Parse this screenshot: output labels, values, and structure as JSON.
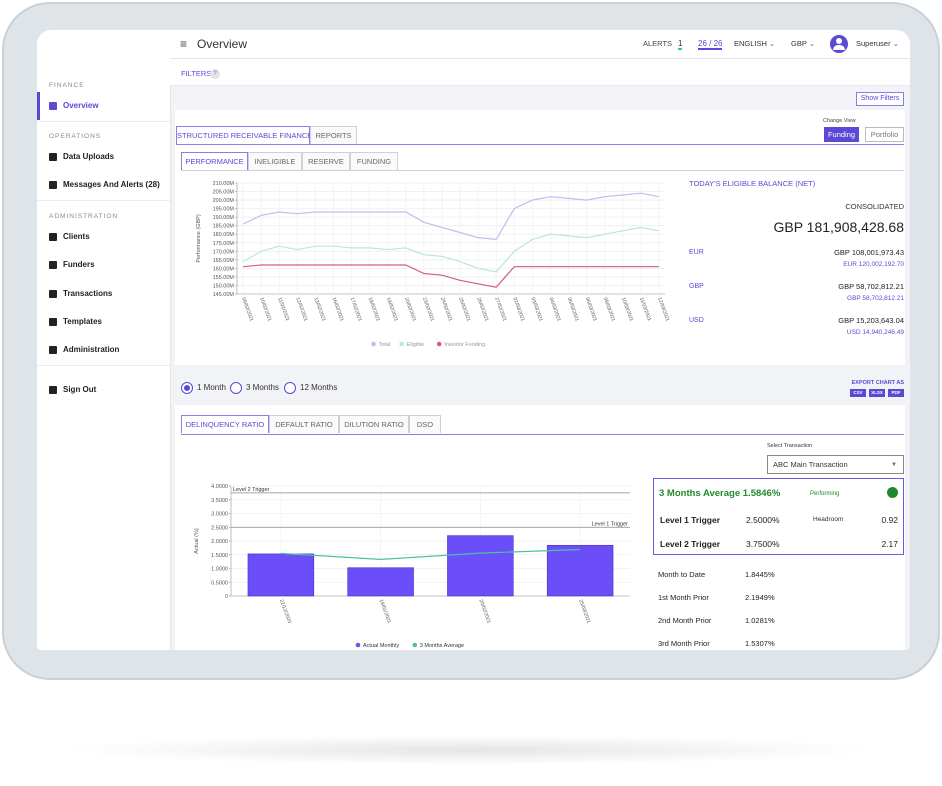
{
  "sidebar": {
    "sections": [
      {
        "heading": "FINANCE",
        "items": [
          "Overview"
        ]
      },
      {
        "heading": "OPERATIONS",
        "items": [
          "Data Uploads",
          "Messages And Alerts  (28)"
        ]
      },
      {
        "heading": "ADMINISTRATION",
        "items": [
          "Clients",
          "Funders",
          "Transactions",
          "Templates",
          "Administration"
        ]
      }
    ],
    "sign_out": "Sign Out"
  },
  "topbar": {
    "menu": "≡",
    "title": "Overview",
    "alerts_label": "ALERTS",
    "alerts_count": "1",
    "alerts_ratio": "26 / 26",
    "language": "ENGLISH",
    "currency": "GBP",
    "user": "Superuser"
  },
  "filters": {
    "label": "FILTERS",
    "help": "?",
    "button": "Show Filters"
  },
  "main_tabs": [
    "STRUCTURED RECEIVABLE FINANCE",
    "REPORTS"
  ],
  "change_view": {
    "label": "Change View",
    "options": [
      "Funding",
      "Portfolio"
    ]
  },
  "sub_tabs": [
    "PERFORMANCE",
    "INELIGIBLE",
    "RESERVE",
    "FUNDING"
  ],
  "balance": {
    "title": "TODAY'S ELIGIBLE BALANCE (NET)",
    "consolidated_label": "CONSOLIDATED",
    "consolidated_value": "GBP 181,908,428.68",
    "rows": [
      {
        "currency": "EUR",
        "gbp": "GBP 108,001,973.43",
        "native": "EUR 120,002,192.70"
      },
      {
        "currency": "GBP",
        "gbp": "GBP 58,702,812.21",
        "native": "GBP 58,702,812.21"
      },
      {
        "currency": "USD",
        "gbp": "GBP 15,203,643.04",
        "native": "USD 14,940,246.49"
      }
    ]
  },
  "periods": [
    "1 Month",
    "3 Months",
    "12 Months"
  ],
  "export": {
    "label": "EXPORT CHART AS",
    "formats": [
      "CSV",
      "XLSX",
      "PDF"
    ]
  },
  "ratio_tabs": [
    "DELINQUENCY RATIO",
    "DEFAULT RATIO",
    "DILUTION RATIO",
    "DSO"
  ],
  "select": {
    "label": "Select Transaction",
    "value": "ABC Main Transaction"
  },
  "trigger_box": {
    "average_label": "3 Months Average",
    "average_value": "1.5846%",
    "status": "Performing",
    "headroom_label": "Headroom",
    "rows": [
      {
        "label": "Level 1 Trigger",
        "value": "2.5000%",
        "headroom": "0.92"
      },
      {
        "label": "Level 2 Trigger",
        "value": "3.7500%",
        "headroom": "2.17"
      }
    ]
  },
  "stats": [
    {
      "label": "Month to Date",
      "value": "1.8445%"
    },
    {
      "label": "1st Month Prior",
      "value": "2.1949%"
    },
    {
      "label": "2nd Month Prior",
      "value": "1.0281%"
    },
    {
      "label": "3rd Month Prior",
      "value": "1.5307%"
    }
  ],
  "chart_data": [
    {
      "type": "line",
      "y_label": "Performance (GBP)",
      "categories": [
        "09/02/2021",
        "10/02/2021",
        "11/02/2021",
        "12/02/2021",
        "13/02/2021",
        "16/02/2021",
        "17/02/2021",
        "18/02/2021",
        "19/02/2021",
        "20/02/2021",
        "23/02/2021",
        "24/02/2021",
        "25/02/2021",
        "26/02/2021",
        "27/02/2021",
        "02/03/2021",
        "03/03/2021",
        "04/03/2021",
        "05/03/2021",
        "06/03/2021",
        "09/03/2021",
        "10/03/2021",
        "11/03/2021",
        "12/03/2021"
      ],
      "series": [
        {
          "name": "Total",
          "color": "#c3bbf2",
          "values": [
            186,
            191,
            193,
            192,
            193,
            193,
            193,
            193,
            193,
            193,
            187,
            184,
            181,
            178,
            177,
            195,
            200,
            202,
            201,
            200,
            202,
            203,
            204,
            202
          ]
        },
        {
          "name": "Eligible",
          "color": "#bde6dc",
          "values": [
            164,
            170,
            173,
            171,
            173,
            173,
            172,
            172,
            171,
            172,
            168,
            167,
            164,
            160,
            158,
            170,
            177,
            180,
            179,
            178,
            180,
            182,
            184,
            182
          ]
        },
        {
          "name": "Investor Funding",
          "color": "#d65f79",
          "values": [
            161,
            162,
            162,
            162,
            162,
            162,
            162,
            162,
            162,
            162,
            157,
            156,
            153,
            151,
            149,
            161,
            161,
            161,
            161,
            161,
            161,
            161,
            161,
            161
          ]
        }
      ],
      "ylim": [
        145,
        210
      ],
      "yticks": [
        {
          "value": 145,
          "label": "145.00M"
        },
        {
          "value": 150,
          "label": "150.00M"
        },
        {
          "value": 155,
          "label": "155.00M"
        },
        {
          "value": 160,
          "label": "160.00M"
        },
        {
          "value": 165,
          "label": "165.00M"
        },
        {
          "value": 170,
          "label": "170.00M"
        },
        {
          "value": 175,
          "label": "175.00M"
        },
        {
          "value": 180,
          "label": "180.00M"
        },
        {
          "value": 185,
          "label": "185.00M"
        },
        {
          "value": 190,
          "label": "190.00M"
        },
        {
          "value": 195,
          "label": "195.00M"
        },
        {
          "value": 200,
          "label": "200.00M"
        },
        {
          "value": 205,
          "label": "205.00M"
        },
        {
          "value": 210,
          "label": "210.00M"
        }
      ],
      "grid": true,
      "legend": "bottom"
    },
    {
      "type": "bar",
      "y_label": "Actual (%)",
      "categories": [
        "22/12/2020",
        "19/01/2021",
        "20/02/2021",
        "25/03/2021"
      ],
      "series": [
        {
          "name": "Actual Monthly",
          "type": "bar",
          "color": "#6b4ef7",
          "values": [
            1.5307,
            1.0281,
            2.1949,
            1.8445
          ]
        },
        {
          "name": "3 Months Average",
          "type": "line",
          "color": "#4cc0a5",
          "values": [
            1.55,
            1.33,
            1.56,
            1.69
          ]
        }
      ],
      "reference_lines": [
        {
          "label": "Level 2 Trigger",
          "value": 3.75
        },
        {
          "label": "Level 1 Trigger",
          "value": 2.5
        }
      ],
      "ylim": [
        0,
        4
      ],
      "yticks": [
        0,
        {
          "value": 0.5,
          "label": "0.5000"
        },
        {
          "value": 1,
          "label": "1.0000"
        },
        {
          "value": 1.5,
          "label": "1.5000"
        },
        {
          "value": 2,
          "label": "2.0000"
        },
        {
          "value": 2.5,
          "label": "2.5000"
        },
        {
          "value": 3,
          "label": "3.0000"
        },
        {
          "value": 3.5,
          "label": "3.5000"
        },
        {
          "value": 4,
          "label": "4.0000"
        }
      ],
      "grid": true,
      "legend": "bottom"
    }
  ]
}
